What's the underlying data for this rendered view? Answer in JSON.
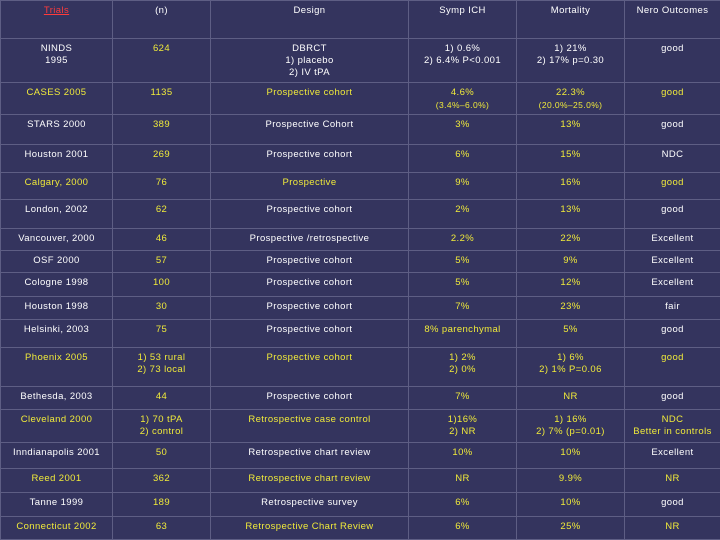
{
  "table": {
    "headers": [
      "Trials",
      "(n)",
      "Design",
      "Symp ICH",
      "Mortality",
      "Nero Outcomes"
    ],
    "rows": [
      {
        "trial": "NINDS\n1995",
        "n": "624",
        "design": "DBRCT\n1) placebo\n2) IV tPA",
        "ich": "1) 0.6%\n2) 6.4% P<0.001",
        "mortality": "1) 21%\n2) 17% p=0.30",
        "outcome": "good"
      },
      {
        "trial": "CASES 2005",
        "n": "1135",
        "design": "Prospective cohort",
        "ich": "4.6%",
        "ich_sub": "(3.4%–6.0%)",
        "mortality": "22.3%",
        "mortality_sub": "(20.0%–25.0%)",
        "outcome": "good"
      },
      {
        "trial": "STARS 2000",
        "n": "389",
        "design": "Prospective Cohort",
        "ich": "3%",
        "mortality": "13%",
        "outcome": "good"
      },
      {
        "trial": "Houston 2001",
        "n": "269",
        "design": "Prospective cohort",
        "ich": "6%",
        "mortality": "15%",
        "outcome": "NDC"
      },
      {
        "trial": "Calgary, 2000",
        "n": "76",
        "design": "Prospective",
        "ich": "9%",
        "mortality": "16%",
        "outcome": "good"
      },
      {
        "trial": "London, 2002",
        "n": "62",
        "design": "Prospective cohort",
        "ich": "2%",
        "mortality": "13%",
        "outcome": "good"
      },
      {
        "trial": "Vancouver, 2000",
        "n": "46",
        "design": "Prospective /retrospective",
        "ich": "2.2%",
        "mortality": "22%",
        "outcome": "Excellent"
      },
      {
        "trial": "OSF 2000",
        "n": "57",
        "design": "Prospective cohort",
        "ich": "5%",
        "mortality": "9%",
        "outcome": "Excellent"
      },
      {
        "trial": "Cologne 1998",
        "n": "100",
        "design": "Prospective cohort",
        "ich": "5%",
        "mortality": "12%",
        "outcome": "Excellent"
      },
      {
        "trial": "Houston 1998",
        "n": "30",
        "design": "Prospective cohort",
        "ich": "7%",
        "mortality": "23%",
        "outcome": "fair"
      },
      {
        "trial": "Helsinki, 2003",
        "n": "75",
        "design": "Prospective cohort",
        "ich": "8% parenchymal",
        "mortality": "5%",
        "outcome": "good"
      },
      {
        "trial": "Phoenix 2005",
        "n": "1) 53 rural\n2) 73 local",
        "design": "Prospective cohort",
        "ich": "1) 2%\n2) 0%",
        "mortality": "1) 6%\n2) 1% P=0.06",
        "outcome": "good"
      },
      {
        "trial": "Bethesda, 2003",
        "n": "44",
        "design": "Prospective cohort",
        "ich": "7%",
        "mortality": "NR",
        "outcome": "good"
      },
      {
        "trial": "Cleveland 2000",
        "n": "1) 70 tPA\n2) control",
        "design": "Retrospective case control",
        "ich": "1)16%\n2) NR",
        "mortality": "1) 16%\n2) 7% (p=0.01)",
        "outcome": "NDC\nBetter in controls"
      },
      {
        "trial": "Inndianapolis 2001",
        "n": "50",
        "design": "Retrospective chart review",
        "ich": "10%",
        "mortality": "10%",
        "outcome": "Excellent"
      },
      {
        "trial": "Reed  2001",
        "n": "362",
        "design": "Retrospective chart review",
        "ich": "NR",
        "mortality": "9.9%",
        "outcome": "NR"
      },
      {
        "trial": "Tanne 1999",
        "n": "189",
        "design": "Retrospective survey",
        "ich": "6%",
        "mortality": "10%",
        "outcome": "good"
      },
      {
        "trial": "Connecticut 2002",
        "n": "63",
        "design": "Retrospective Chart Review",
        "ich": "6%",
        "mortality": "25%",
        "outcome": "NR"
      }
    ]
  }
}
